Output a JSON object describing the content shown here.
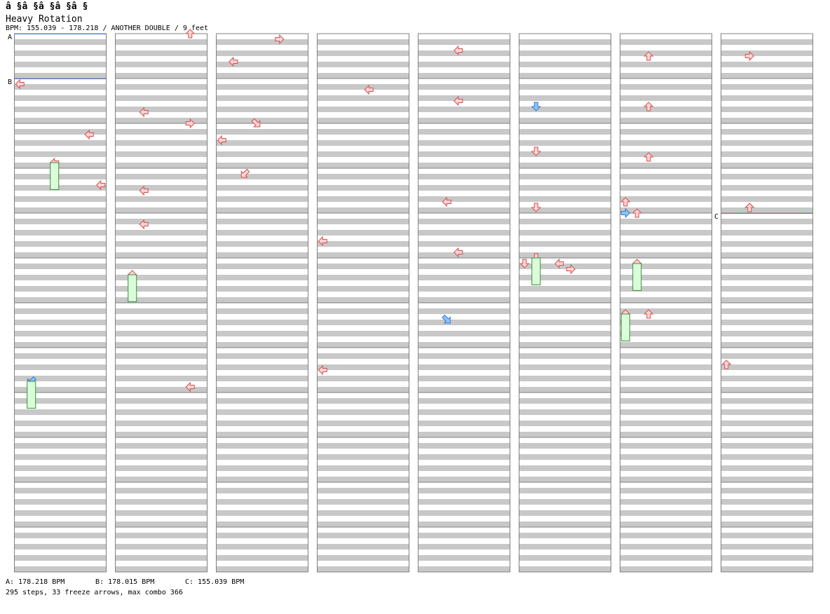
{
  "header": {
    "title": "â §â §â §â §â §",
    "song": "Heavy Rotation",
    "info": "BPM: 155.039 - 178.218 / ANOTHER DOUBLE / 9 feet"
  },
  "footer": {
    "bpm_a": "A: 178.218 BPM",
    "bpm_b": "B: 178.015 BPM",
    "bpm_c": "C: 155.039 BPM",
    "stats": "295 steps, 33 freeze arrows, max combo 366"
  },
  "colors": {
    "stripe": "#c8c8c8",
    "border": "#808080",
    "bpm_line": "#4a7fd6",
    "arrow_fill": "#ffd4d4",
    "arrow_stroke": "#d05050",
    "blue_fill": "#8cc4ff",
    "blue_stroke": "#3a78c8",
    "freeze_fill": "#d9fdd9",
    "freeze_stroke": "#3c8c3c"
  },
  "chart_data": {
    "type": "step-chart",
    "title": "Heavy Rotation",
    "difficulty": "ANOTHER DOUBLE",
    "level": "9 feet",
    "lanes": 8,
    "columns": 8,
    "measures_per_column": 12,
    "steps_per_measure": 8,
    "bpm_markers": [
      {
        "label": "A",
        "column": 0,
        "measure": 0,
        "bpm": 178.218
      },
      {
        "label": "B",
        "column": 0,
        "measure": 1,
        "bpm": 178.015
      },
      {
        "label": "C",
        "column": 7,
        "measure": 4,
        "bpm": 155.039
      }
    ],
    "totals": {
      "steps": 295,
      "freeze_arrows": 33,
      "max_combo": 366
    },
    "notes": [
      [
        2,
        2,
        3,
        "dr"
      ],
      [
        2,
        3,
        2,
        "dl"
      ],
      [
        1,
        4,
        2,
        "l"
      ],
      [
        1,
        5,
        1,
        "u"
      ],
      [
        6,
        0,
        2,
        "u"
      ],
      [
        5,
        1,
        1,
        "d"
      ],
      [
        4,
        3,
        2,
        "l"
      ],
      [
        5,
        3,
        1,
        "d"
      ],
      [
        6,
        4,
        1,
        "u"
      ],
      [
        5,
        5,
        0,
        "d"
      ],
      [
        6,
        6,
        0,
        "u"
      ],
      [
        4,
        0,
        3,
        "l"
      ],
      [
        7,
        0,
        2,
        "r"
      ],
      [
        6,
        1,
        2,
        "u"
      ],
      [
        6,
        2,
        2,
        "u"
      ],
      [
        7,
        3,
        2,
        "u"
      ],
      [
        6,
        4,
        0,
        "r"
      ],
      [
        6,
        5,
        1,
        "u"
      ],
      [
        6,
        6,
        2,
        "u"
      ],
      [
        7,
        7,
        0,
        "u"
      ],
      [
        4,
        1,
        3,
        "l"
      ],
      [
        5,
        2,
        1,
        "d"
      ],
      [
        6,
        3,
        0,
        "u"
      ],
      [
        4,
        4,
        3,
        "l"
      ],
      [
        5,
        5,
        1,
        "d"
      ],
      [
        5,
        5,
        3,
        "l"
      ],
      [
        5,
        5,
        4,
        "r"
      ],
      [
        4,
        6,
        2,
        "dr"
      ],
      [
        3,
        7,
        0,
        "l"
      ],
      [
        2,
        0,
        1,
        "l"
      ],
      [
        1,
        1,
        2,
        "l"
      ],
      [
        0,
        2,
        3,
        "l"
      ],
      [
        1,
        2,
        6,
        "r"
      ],
      [
        2,
        0,
        5,
        "r"
      ],
      [
        3,
        1,
        4,
        "l"
      ],
      [
        2,
        2,
        0,
        "l"
      ],
      [
        1,
        3,
        2,
        "l"
      ],
      [
        3,
        4,
        0,
        "l"
      ],
      [
        0,
        7,
        1,
        "dl"
      ],
      [
        1,
        7,
        6,
        "l"
      ],
      [
        1,
        0,
        6,
        "u"
      ],
      [
        0,
        1,
        0,
        "l"
      ],
      [
        0,
        2,
        6,
        "l"
      ],
      [
        0,
        3,
        7,
        "l"
      ]
    ]
  }
}
